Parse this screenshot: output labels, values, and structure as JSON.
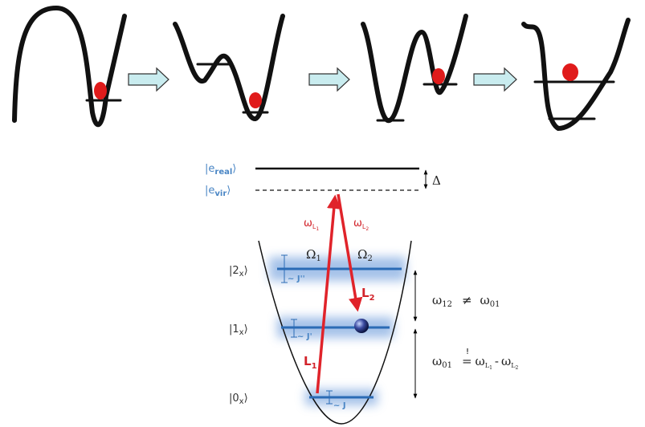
{
  "states": [
    {
      "prefix": "|e",
      "sub": "real",
      "suffix": "⟩"
    },
    {
      "prefix": "|e",
      "sub": "vir",
      "suffix": "⟩"
    },
    {
      "prefix": "|2",
      "sub": "x",
      "suffix": "⟩",
      "coupling": "~ J''"
    },
    {
      "prefix": "|1",
      "sub": "x",
      "suffix": "⟩",
      "coupling": "~ J'"
    },
    {
      "prefix": "|0",
      "sub": "x",
      "suffix": "⟩",
      "coupling": "~ J"
    }
  ],
  "detuning": "Δ",
  "lasers": [
    {
      "freq": "ω",
      "freq_sub": "L",
      "freq_subsub": "1",
      "label": "L",
      "label_sub": "1"
    },
    {
      "freq": "ω",
      "freq_sub": "L",
      "freq_subsub": "2",
      "label": "L",
      "label_sub": "2"
    }
  ],
  "rabi": [
    {
      "symbol": "Ω",
      "sub": "1"
    },
    {
      "symbol": "Ω",
      "sub": "2"
    }
  ],
  "relations": [
    {
      "lhs": "ω",
      "lhs_sub": "12",
      "op": "≠",
      "rhs": "ω",
      "rhs_sub": "01"
    },
    {
      "lhs": "ω",
      "lhs_sub": "01",
      "op_mark": "!",
      "op": "=",
      "minus": "-",
      "rhs_terms": [
        {
          "symbol": "ω",
          "sub": "L",
          "subsub": "1"
        },
        {
          "symbol": "ω",
          "sub": "L",
          "subsub": "2"
        }
      ]
    }
  ]
}
